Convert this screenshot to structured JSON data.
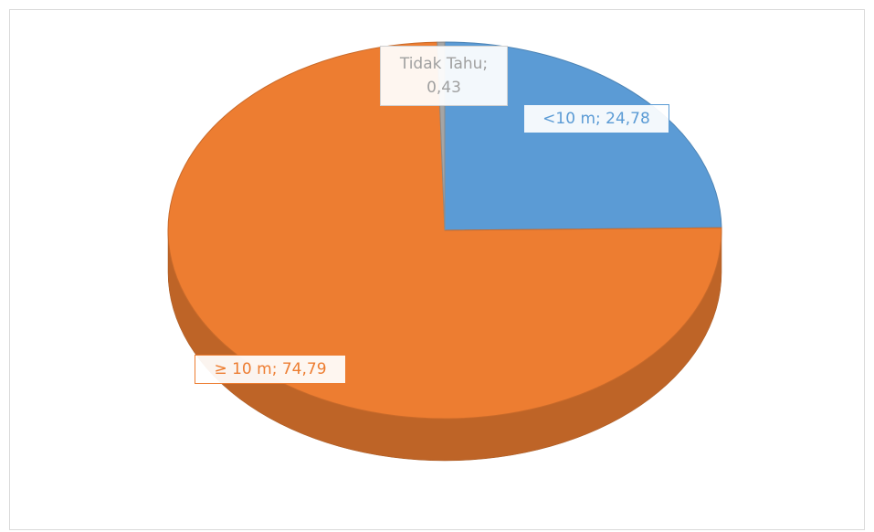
{
  "chart_data": {
    "type": "pie3d",
    "values": [
      24.78,
      74.79,
      0.43
    ],
    "value_labels": [
      "<10 m; 24,78",
      "≥ 10 m; 74,79",
      "Tidak Tahu; 0,43"
    ],
    "colors": [
      "#5b9bd5",
      "#ed7d31",
      "#a5a5a5"
    ]
  }
}
